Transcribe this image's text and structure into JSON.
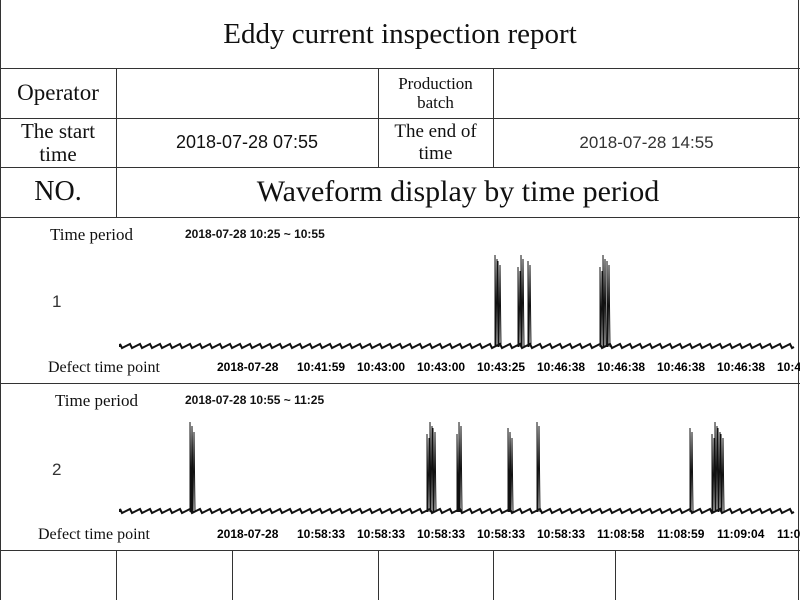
{
  "title": "Eddy current inspection report",
  "header": {
    "operator_label": "Operator",
    "production_batch_label": "Production batch",
    "start_label": "The start time",
    "start_value": "2018-07-28 07:55",
    "end_label": "The end of time",
    "end_value": "2018-07-28 14:55",
    "no_label": "NO.",
    "waveform_title": "Waveform display by time period"
  },
  "sections": [
    {
      "time_period_label": "Time period",
      "time_period": "2018-07-28 10:25 ~ 10:55",
      "number": "1",
      "defect_label": "Defect time point",
      "defect_times": [
        "2018-07-28",
        "10:41:59",
        "10:43:00",
        "10:43:00",
        "10:43:25",
        "10:46:38",
        "10:46:38",
        "10:46:38",
        "10:46:38",
        "10:4"
      ]
    },
    {
      "time_period_label": "Time period",
      "time_period": "2018-07-28 10:55 ~ 11:25",
      "number": "2",
      "defect_label": "Defect time point",
      "defect_times": [
        "2018-07-28",
        "10:58:33",
        "10:58:33",
        "10:58:33",
        "10:58:33",
        "10:58:33",
        "11:08:58",
        "11:08:59",
        "11:09:04",
        "11:0"
      ]
    }
  ]
}
